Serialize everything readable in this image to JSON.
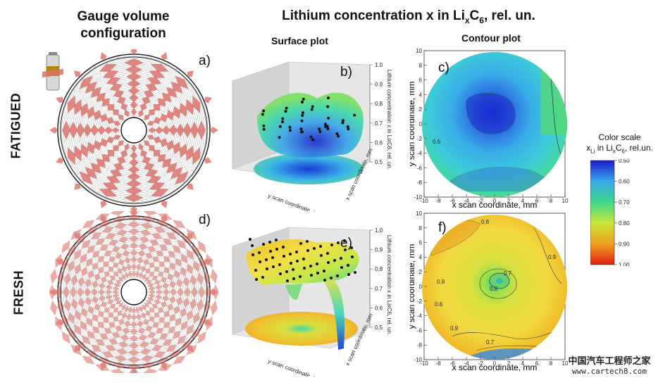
{
  "header": {
    "left_title_line1": "Gauge volume",
    "left_title_line2": "configuration",
    "main_title_prefix": "Lithium concentration x in Li",
    "main_title_sub_x": "x",
    "main_title_C": "C",
    "main_title_sub_6": "6",
    "main_title_suffix": ", rel. un."
  },
  "columns": {
    "surface": "Surface plot",
    "contour": "Contour plot"
  },
  "rows": {
    "fatigued": "FATIGUED",
    "fresh": "FRESH"
  },
  "panels": {
    "a": "a)",
    "b": "b)",
    "c": "c)",
    "d": "d)",
    "e": "e)",
    "f": "f)"
  },
  "surface_axes": {
    "z_label": "Lithium concentration x in LixC6, rel. un.",
    "y_label": "y scan coordinate, mm",
    "x_label": "x scan coordinate, mm",
    "z_ticks": [
      "1.0",
      "0.9",
      "0.8",
      "0.7",
      "0.6",
      "0.5"
    ]
  },
  "contour_axes": {
    "x_label": "x scan coordinate, mm",
    "y_label": "y scan coordinate, mm",
    "x_ticks": [
      "-10",
      "-8",
      "-6",
      "-4",
      "-2",
      "0",
      "2",
      "4",
      "6",
      "8",
      "10"
    ],
    "y_ticks": [
      "10",
      "8",
      "6",
      "4",
      "2",
      "0",
      "-2",
      "-4",
      "-6",
      "-8",
      "-10"
    ]
  },
  "contour_c_labels": [
    "0.6"
  ],
  "contour_f_labels": [
    "0.8",
    "0.9",
    "0.9",
    "0.7",
    "0.8",
    "0.6",
    "0.9",
    "0.7"
  ],
  "colorbar": {
    "title": "Color scale",
    "sub_prefix": "x",
    "sub_Li": "Li",
    "sub_mid": " in Li",
    "sub_x": "x",
    "sub_C": "C",
    "sub_6": "6",
    "sub_suffix": ", rel.un.",
    "ticks": [
      "0.50",
      "0.60",
      "0.70",
      "0.80",
      "0.90",
      "1.00"
    ],
    "colors": [
      "#1a1acc",
      "#3aa8e8",
      "#3ed88a",
      "#c8e63a",
      "#f0a020",
      "#e02010"
    ]
  },
  "watermark": {
    "line1": "中国汽车工程师之家",
    "line2": "www.cartech8.com"
  }
}
